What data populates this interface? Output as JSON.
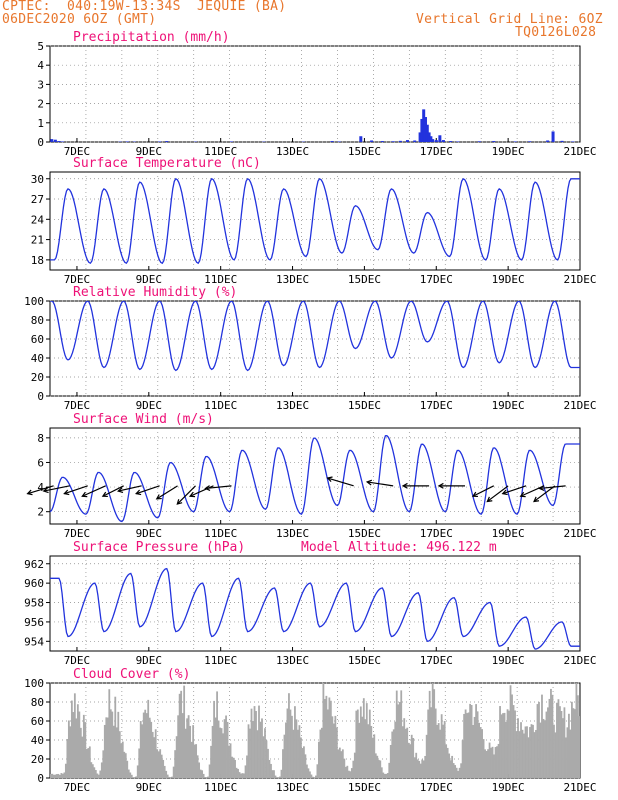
{
  "header": {
    "line1": "CPTEC:  040:19W-13:34S  JEQUIE (BA)",
    "line2": "06DEC2020 6OZ (GMT)",
    "grid_note": "Vertical Grid Line: 6OZ",
    "run_id": "TQ0126L028"
  },
  "model_altitude": "Model Altitude: 496.122 m",
  "colors": {
    "header": "#e8762c",
    "title": "#ee1177",
    "series": "#2233dd",
    "cloud": "#aaaaaa",
    "wind_arrow": "#000000"
  },
  "chart_data": [
    {
      "type": "bar",
      "title": "Precipitation (mm/h)",
      "x_tick_labels": [
        "7DEC",
        "9DEC",
        "11DEC",
        "13DEC",
        "15DEC",
        "17DEC",
        "19DEC",
        "21DEC"
      ],
      "x_tick_days": [
        7,
        9,
        11,
        13,
        15,
        17,
        19,
        21
      ],
      "xlim_days": [
        6.25,
        21
      ],
      "ylim": [
        0,
        5
      ],
      "y_ticks": [
        0,
        1,
        2,
        3,
        4,
        5
      ],
      "grid": true,
      "bars": [
        [
          6.3,
          0.15
        ],
        [
          6.4,
          0.12
        ],
        [
          6.5,
          0.05
        ],
        [
          6.6,
          0.03
        ],
        [
          8.2,
          0.02
        ],
        [
          8.4,
          0.03
        ],
        [
          8.6,
          0.02
        ],
        [
          9.3,
          0.03
        ],
        [
          9.5,
          0.05
        ],
        [
          10.3,
          0.02
        ],
        [
          11.3,
          0.03
        ],
        [
          12.2,
          0.02
        ],
        [
          13.3,
          0.02
        ],
        [
          14.1,
          0.05
        ],
        [
          14.3,
          0.03
        ],
        [
          14.9,
          0.3
        ],
        [
          15.2,
          0.08
        ],
        [
          15.5,
          0.05
        ],
        [
          15.8,
          0.04
        ],
        [
          16.0,
          0.06
        ],
        [
          16.2,
          0.1
        ],
        [
          16.4,
          0.08
        ],
        [
          16.55,
          0.5
        ],
        [
          16.6,
          1.2
        ],
        [
          16.65,
          1.7
        ],
        [
          16.7,
          1.3
        ],
        [
          16.75,
          0.9
        ],
        [
          16.8,
          0.5
        ],
        [
          16.85,
          0.3
        ],
        [
          16.9,
          0.15
        ],
        [
          17.0,
          0.1
        ],
        [
          17.1,
          0.35
        ],
        [
          17.2,
          0.1
        ],
        [
          17.4,
          0.05
        ],
        [
          17.6,
          0.03
        ],
        [
          18.2,
          0.04
        ],
        [
          18.6,
          0.05
        ],
        [
          19.2,
          0.03
        ],
        [
          19.6,
          0.04
        ],
        [
          20.1,
          0.08
        ],
        [
          20.25,
          0.55
        ],
        [
          20.5,
          0.06
        ],
        [
          20.8,
          0.03
        ]
      ]
    },
    {
      "type": "line",
      "title": "Surface Temperature (nC)",
      "x_tick_labels": [
        "7DEC",
        "9DEC",
        "11DEC",
        "13DEC",
        "15DEC",
        "17DEC",
        "19DEC",
        "21DEC"
      ],
      "x_tick_days": [
        7,
        9,
        11,
        13,
        15,
        17,
        19,
        21
      ],
      "xlim_days": [
        6.25,
        21
      ],
      "ylim": [
        16.5,
        31
      ],
      "y_ticks": [
        18,
        21,
        24,
        27,
        30
      ],
      "grid": true,
      "daily_min": [
        18.0,
        17.5,
        17.5,
        17.5,
        17.5,
        18.0,
        18.0,
        18.5,
        19.0,
        19.5,
        19.0,
        18.5,
        18.0,
        18.0,
        18.0
      ],
      "daily_max": [
        28.5,
        28.5,
        29.5,
        30.0,
        30.0,
        30.0,
        28.5,
        30.0,
        26.0,
        28.5,
        25.0,
        30.0,
        28.5,
        29.5,
        30.0
      ]
    },
    {
      "type": "line",
      "title": "Relative Humidity (%)",
      "x_tick_labels": [
        "7DEC",
        "9DEC",
        "11DEC",
        "13DEC",
        "15DEC",
        "17DEC",
        "19DEC",
        "21DEC"
      ],
      "x_tick_days": [
        7,
        9,
        11,
        13,
        15,
        17,
        19,
        21
      ],
      "xlim_days": [
        6.25,
        21
      ],
      "ylim": [
        0,
        100
      ],
      "y_ticks": [
        0,
        20,
        40,
        60,
        80,
        100
      ],
      "grid": true,
      "daily_min": [
        38,
        30,
        28,
        27,
        28,
        27,
        32,
        30,
        50,
        40,
        57,
        30,
        35,
        30,
        30
      ],
      "daily_max": [
        100,
        100,
        100,
        100,
        100,
        100,
        100,
        100,
        100,
        100,
        100,
        100,
        100,
        100,
        100
      ]
    },
    {
      "type": "line",
      "title": "Surface Wind (m/s)",
      "x_tick_labels": [
        "7DEC",
        "9DEC",
        "11DEC",
        "13DEC",
        "15DEC",
        "17DEC",
        "19DEC",
        "21DEC"
      ],
      "x_tick_days": [
        7,
        9,
        11,
        13,
        15,
        17,
        19,
        21
      ],
      "xlim_days": [
        6.25,
        21
      ],
      "ylim": [
        1,
        8.8
      ],
      "y_ticks": [
        2,
        4,
        6,
        8
      ],
      "grid": true,
      "daily_min": [
        2.0,
        1.8,
        1.2,
        1.5,
        2.0,
        2.0,
        2.2,
        1.8,
        2.5,
        2.0,
        2.0,
        2.0,
        1.8,
        1.8,
        2.5
      ],
      "daily_max": [
        4.8,
        5.2,
        5.2,
        6.0,
        6.5,
        7.0,
        7.2,
        8.0,
        7.0,
        8.2,
        7.5,
        7.0,
        7.2,
        7.0,
        7.5
      ],
      "arrow_days": [
        6.35,
        6.8,
        7.3,
        7.8,
        8.3,
        8.8,
        9.3,
        9.8,
        10.3,
        10.8,
        11.3,
        14.7,
        15.8,
        16.8,
        17.8,
        18.6,
        19.0,
        19.5,
        20.0,
        20.3,
        20.6
      ],
      "arrow_u": [
        1,
        1,
        0.9,
        0.9,
        0.8,
        0.9,
        0.9,
        0.8,
        0.7,
        0.9,
        1,
        1,
        1,
        1,
        1,
        0.8,
        0.8,
        0.9,
        0.9,
        0.8,
        1
      ],
      "arrow_v": [
        0.3,
        0.2,
        0.3,
        0.4,
        0.4,
        0.2,
        0.3,
        0.5,
        0.7,
        0.4,
        0.1,
        -0.3,
        -0.15,
        0,
        0,
        0.4,
        0.6,
        0.3,
        0.4,
        0.6,
        0.1
      ]
    },
    {
      "type": "line",
      "title": "Surface Pressure (hPa)",
      "x_tick_labels": [
        "7DEC",
        "9DEC",
        "11DEC",
        "13DEC",
        "15DEC",
        "17DEC",
        "19DEC",
        "21DEC"
      ],
      "x_tick_days": [
        7,
        9,
        11,
        13,
        15,
        17,
        19,
        21
      ],
      "xlim_days": [
        6.25,
        21
      ],
      "ylim": [
        953,
        962.8
      ],
      "y_ticks": [
        954,
        956,
        958,
        960,
        962
      ],
      "grid": true,
      "daily_max": [
        960.5,
        960.0,
        961.0,
        961.5,
        960.0,
        960.5,
        959.5,
        960.0,
        960.0,
        959.5,
        959.0,
        958.5,
        958.0,
        956.5,
        956.0
      ],
      "daily_min": [
        954.5,
        955.0,
        955.5,
        955.0,
        954.5,
        955.0,
        955.0,
        955.5,
        955.0,
        954.5,
        954.0,
        954.5,
        953.5,
        953.2,
        953.5
      ]
    },
    {
      "type": "bar",
      "title": "Cloud Cover (%)",
      "x_tick_labels": [
        "7DEC",
        "9DEC",
        "11DEC",
        "13DEC",
        "15DEC",
        "17DEC",
        "19DEC",
        "21DEC"
      ],
      "x_tick_days": [
        7,
        9,
        11,
        13,
        15,
        17,
        19,
        21
      ],
      "xlim_days": [
        6.25,
        21
      ],
      "ylim": [
        0,
        100
      ],
      "y_ticks": [
        0,
        20,
        40,
        60,
        80,
        100
      ],
      "grid": true,
      "daily_max": [
        97,
        95,
        85,
        95,
        90,
        92,
        85,
        95,
        95,
        95,
        95,
        90,
        95,
        97,
        97
      ],
      "daily_min": [
        5,
        5,
        0,
        0,
        0,
        5,
        0,
        0,
        10,
        5,
        20,
        10,
        30,
        60,
        70
      ]
    }
  ]
}
